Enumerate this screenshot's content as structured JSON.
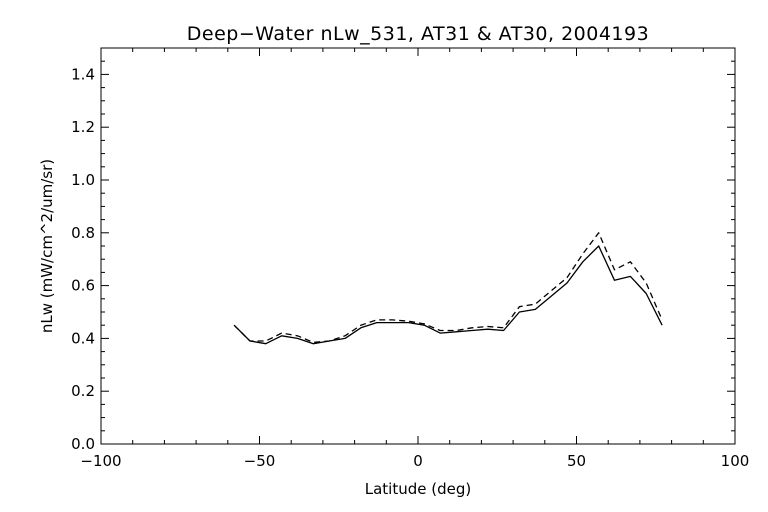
{
  "chart_data": {
    "type": "line",
    "title": "Deep−Water nLw_531, AT31 & AT30, 2004193",
    "xlabel": "Latitude (deg)",
    "ylabel": "nLw (mW/cm^2/um/sr)",
    "xlim": [
      -100,
      100
    ],
    "ylim": [
      0.0,
      1.5
    ],
    "x_ticks": [
      -100,
      -50,
      0,
      50,
      100
    ],
    "x_tick_labels": [
      "−100",
      "−50",
      "0",
      "50",
      "100"
    ],
    "y_ticks": [
      0.0,
      0.2,
      0.4,
      0.6,
      0.8,
      1.0,
      1.2,
      1.4
    ],
    "y_tick_labels": [
      "0.0",
      "0.2",
      "0.4",
      "0.6",
      "0.8",
      "1.0",
      "1.2",
      "1.4"
    ],
    "grid": false,
    "legend": "none",
    "series": [
      {
        "style": "solid",
        "color": "#000000",
        "x": [
          -58,
          -53,
          -48,
          -43,
          -38,
          -33,
          -28,
          -23,
          -18,
          -13,
          -8,
          -3,
          2,
          7,
          12,
          17,
          22,
          27,
          32,
          37,
          42,
          47,
          52,
          57,
          62,
          67,
          72,
          77
        ],
        "y": [
          0.45,
          0.39,
          0.38,
          0.41,
          0.4,
          0.38,
          0.39,
          0.4,
          0.44,
          0.46,
          0.46,
          0.46,
          0.45,
          0.42,
          0.425,
          0.43,
          0.435,
          0.43,
          0.5,
          0.51,
          0.56,
          0.61,
          0.69,
          0.75,
          0.62,
          0.635,
          0.57,
          0.45
        ]
      },
      {
        "style": "dashed",
        "color": "#000000",
        "x": [
          -58,
          -53,
          -48,
          -43,
          -38,
          -33,
          -28,
          -23,
          -18,
          -13,
          -8,
          -3,
          2,
          7,
          12,
          17,
          22,
          27,
          32,
          37,
          42,
          47,
          52,
          57,
          62,
          67,
          72,
          77
        ],
        "y": [
          0.45,
          0.39,
          0.39,
          0.42,
          0.41,
          0.385,
          0.39,
          0.41,
          0.45,
          0.47,
          0.47,
          0.465,
          0.455,
          0.43,
          0.43,
          0.44,
          0.445,
          0.44,
          0.52,
          0.53,
          0.58,
          0.63,
          0.72,
          0.8,
          0.66,
          0.69,
          0.61,
          0.47
        ]
      }
    ]
  }
}
